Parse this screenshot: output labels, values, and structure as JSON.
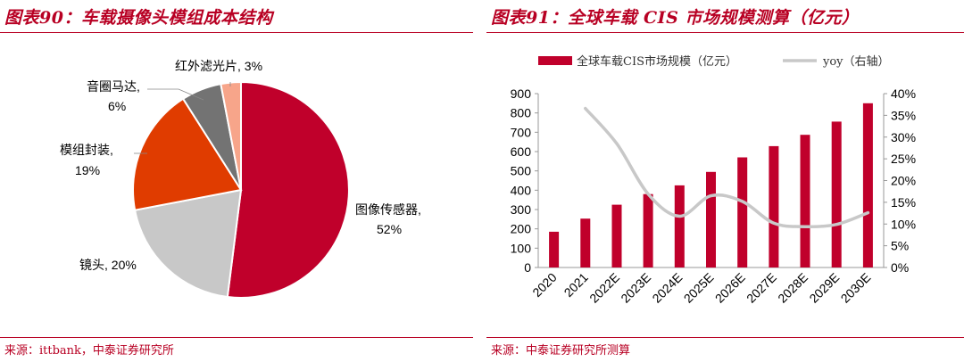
{
  "left": {
    "title": "图表90：车载摄像头模组成本结构",
    "source": "来源：ittbank，中泰证券研究所"
  },
  "right": {
    "title": "图表91：全球车载 CIS 市场规模测算（亿元）",
    "source": "来源：中泰证券研究所测算"
  },
  "chart_data": [
    {
      "type": "pie",
      "title": "图表90：车载摄像头模组成本结构",
      "slices": [
        {
          "name": "图像传感器",
          "value": 52,
          "label": "52%",
          "color": "#c0002b"
        },
        {
          "name": "镜头",
          "value": 20,
          "label": "20%",
          "color": "#c8c8c8"
        },
        {
          "name": "模组封装",
          "value": 19,
          "label": "19%",
          "color": "#e03c00"
        },
        {
          "name": "音圈马达",
          "value": 6,
          "label": "6%",
          "color": "#737373"
        },
        {
          "name": "红外滤光片",
          "value": 3,
          "label": "3%",
          "color": "#f7a58a"
        }
      ]
    },
    {
      "type": "bar",
      "title": "图表91：全球车载 CIS 市场规模测算（亿元）",
      "categories": [
        "2020",
        "2021",
        "2022E",
        "2023E",
        "2024E",
        "2025E",
        "2026E",
        "2027E",
        "2028E",
        "2029E",
        "2030E"
      ],
      "series": [
        {
          "name": "全球车载CIS市场规模（亿元）",
          "type": "bar",
          "axis": "left",
          "color": "#c0002b",
          "values": [
            185,
            253,
            325,
            380,
            425,
            495,
            570,
            628,
            687,
            755,
            850
          ]
        },
        {
          "name": "yoy（右轴）",
          "type": "line",
          "axis": "right",
          "color": "#c8c8c8",
          "values": [
            null,
            36.6,
            28.5,
            16.9,
            11.8,
            16.5,
            15.2,
            10.2,
            9.4,
            9.9,
            12.6
          ]
        }
      ],
      "ylim": [
        0,
        900
      ],
      "yticks": [
        "0",
        "100",
        "200",
        "300",
        "400",
        "500",
        "600",
        "700",
        "800",
        "900"
      ],
      "y2lim": [
        0,
        40
      ],
      "y2ticks": [
        "0%",
        "5%",
        "10%",
        "15%",
        "20%",
        "25%",
        "30%",
        "35%",
        "40%"
      ],
      "legend": "top"
    }
  ]
}
